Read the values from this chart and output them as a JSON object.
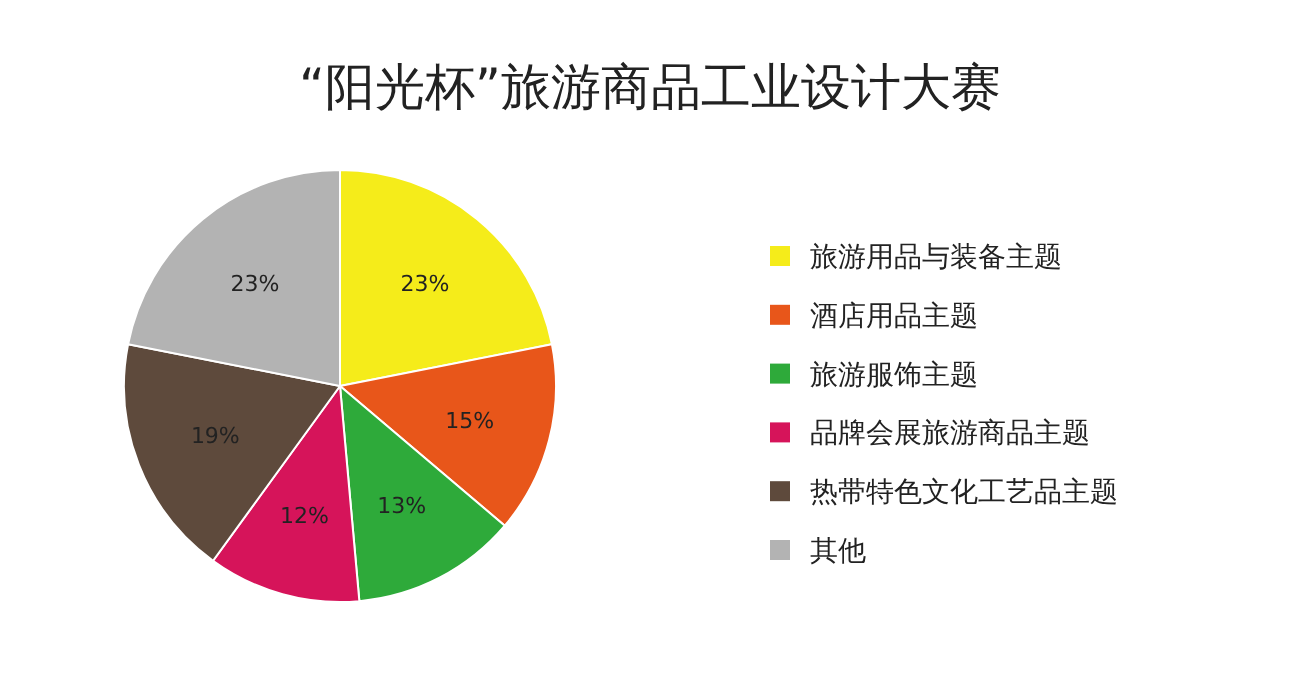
{
  "chart_data": {
    "type": "pie",
    "title": "“阳光杯”旅游商品工业设计大赛",
    "categories": [
      "旅游用品与装备主题",
      "酒店用品主题",
      "旅游服饰主题",
      "品牌会展旅游商品主题",
      "热带特色文化工艺品主题",
      "其他"
    ],
    "values": [
      23,
      15,
      13,
      12,
      19,
      23
    ],
    "colors": [
      "#f5ec1a",
      "#e8561a",
      "#2eaa3a",
      "#d6145a",
      "#5e4a3c",
      "#b3b3b3"
    ],
    "value_labels": [
      "23%",
      "15%",
      "13%",
      "12%",
      "19%",
      "23%"
    ],
    "legend": "right"
  }
}
